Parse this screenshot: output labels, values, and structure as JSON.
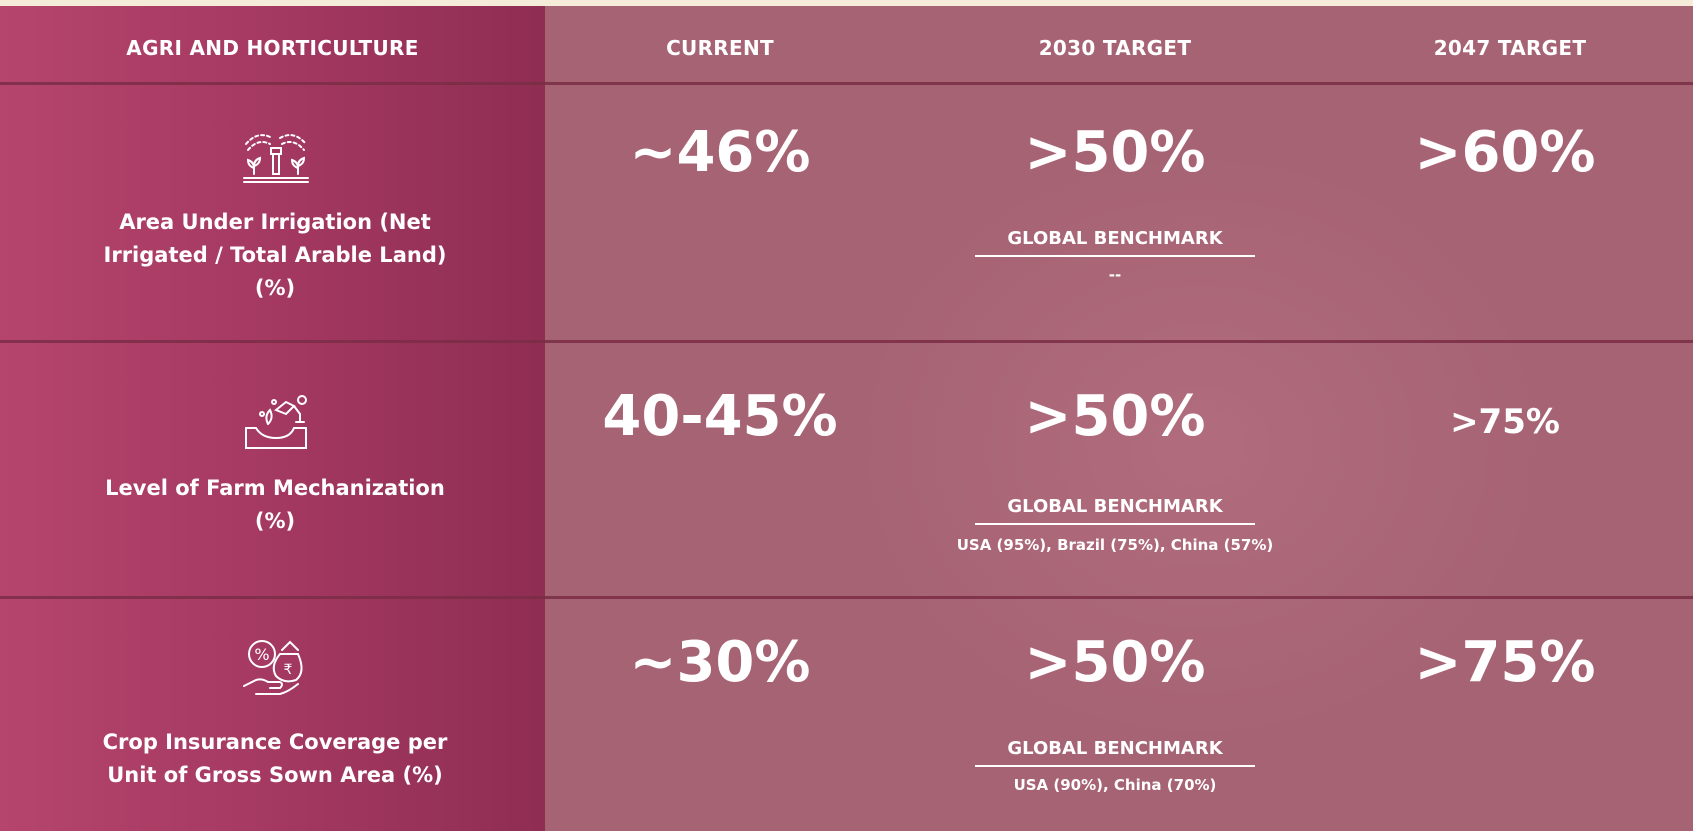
{
  "header": {
    "col1": "AGRI AND HORTICULTURE",
    "col2": "CURRENT",
    "col3": "2030 TARGET",
    "col4": "2047 TARGET"
  },
  "rows": [
    {
      "icon": "irrigation-sprinkler-icon",
      "metric_line1": "Area Under Irrigation (Net",
      "metric_line2": "Irrigated / Total Arable Land)",
      "metric_line3": "(%)",
      "current": "~46%",
      "target_2030": ">50%",
      "target_2047": ">60%",
      "benchmark_label": "GLOBAL BENCHMARK",
      "benchmark_value": "--"
    },
    {
      "icon": "farm-mechanization-icon",
      "metric_line1": "Level of Farm Mechanization",
      "metric_line2": "(%)",
      "current": "40-45%",
      "target_2030": ">50%",
      "target_2047": ">75%",
      "benchmark_label": "GLOBAL BENCHMARK",
      "benchmark_value": "USA (95%), Brazil (75%), China (57%)"
    },
    {
      "icon": "crop-insurance-icon",
      "metric_line1": "Crop Insurance Coverage per",
      "metric_line2": "Unit of Gross Sown Area (%)",
      "current": "~30%",
      "target_2030": ">50%",
      "target_2047": ">75%",
      "benchmark_label": "GLOBAL BENCHMARK",
      "benchmark_value": "USA (90%), China (70%)"
    }
  ],
  "colors": {
    "left_column": "#a63a62",
    "table_background": "#a66374",
    "text": "#ffffff"
  }
}
